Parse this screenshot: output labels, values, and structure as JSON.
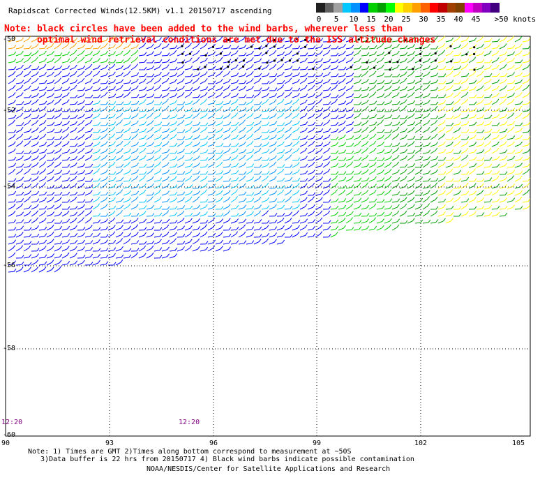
{
  "header": {
    "title": "Rapidscat Corrected Winds(12.5KM) v1.1 20150717 ascending",
    "note_line1": "Note: black circles have been added to the wind barbs, wherever less than",
    "note_line2": "      optimal wind retrieval conditions are met due to the ISS altitude changes"
  },
  "color_scale": {
    "unit_label": ">50 knots",
    "labels": [
      "0",
      "5",
      "10",
      "15",
      "20",
      "25",
      "30",
      "35",
      "40",
      "45"
    ],
    "colors": [
      "#202020",
      "#606060",
      "#a0a0a0",
      "#00c8ff",
      "#0090ff",
      "#0000ff",
      "#00d000",
      "#00a000",
      "#00ff00",
      "#ffff00",
      "#ffd000",
      "#ffa000",
      "#ff6000",
      "#ff0000",
      "#c00000",
      "#a04000",
      "#804000",
      "#ff00ff",
      "#c000c0",
      "#8000c0",
      "#400080"
    ]
  },
  "map": {
    "latitude_labels": [
      "-50",
      "-52",
      "-54",
      "-56",
      "-58",
      "-60"
    ],
    "longitude_labels": [
      "90",
      "93",
      "96",
      "99",
      "102",
      "105"
    ],
    "lat_range": [
      -60,
      -50
    ],
    "lon_range": [
      90,
      105
    ],
    "grid": "dotted",
    "time_labels": [
      "12:20",
      "12:20"
    ]
  },
  "footer": {
    "footnote_line1": "Note: 1) Times are GMT 2)Times along bottom correspond to measurement at ~50S",
    "footnote_line2": "   3)Data buffer is 22 hrs from 20150717 4) Black wind barbs indicate possible contamination",
    "credit": "NOAA/NESDIS/Center for Satellite Applications and Research"
  }
}
